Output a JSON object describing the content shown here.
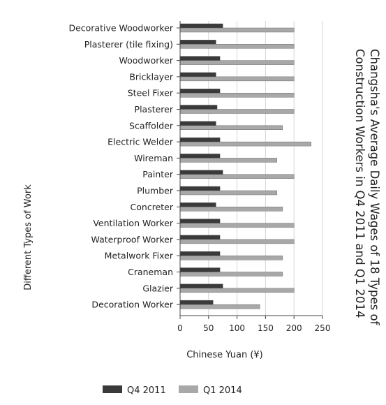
{
  "chart_data": {
    "type": "bar",
    "orientation": "horizontal",
    "title": "Changsha's Average Daily Wages of 18 Types of Construction Workers in Q4 2011 and Q1 2014",
    "title_lines": [
      "Changsha's Average Daily Wages of 18 Types of",
      "Construction Workers in Q4 2011 and Q1 2014"
    ],
    "xlabel": "Chinese Yuan (¥)",
    "ylabel": "Different Types of Work",
    "xlim": [
      0,
      250
    ],
    "xticks": [
      0,
      50,
      100,
      150,
      200,
      250
    ],
    "grid": true,
    "legend_position": "bottom",
    "categories": [
      "Decorative Woodworker",
      "Plasterer (tile fixing)",
      "Woodworker",
      "Bricklayer",
      "Steel Fixer",
      "Plasterer",
      "Scaffolder",
      "Electric Welder",
      "Wireman",
      "Painter",
      "Plumber",
      "Concreter",
      "Ventilation Worker",
      "Waterproof Worker",
      "Metalwork Fixer",
      "Craneman",
      "Glazier",
      "Decoration Worker"
    ],
    "series": [
      {
        "name": "Q4 2011",
        "color": "#3a3a3a",
        "values": [
          75,
          63,
          70,
          63,
          70,
          65,
          63,
          70,
          70,
          75,
          70,
          63,
          70,
          70,
          70,
          70,
          75,
          58
        ]
      },
      {
        "name": "Q1 2014",
        "color": "#a8a8a8",
        "values": [
          200,
          200,
          200,
          200,
          200,
          200,
          180,
          230,
          170,
          200,
          170,
          180,
          200,
          200,
          180,
          180,
          200,
          140
        ]
      }
    ]
  }
}
